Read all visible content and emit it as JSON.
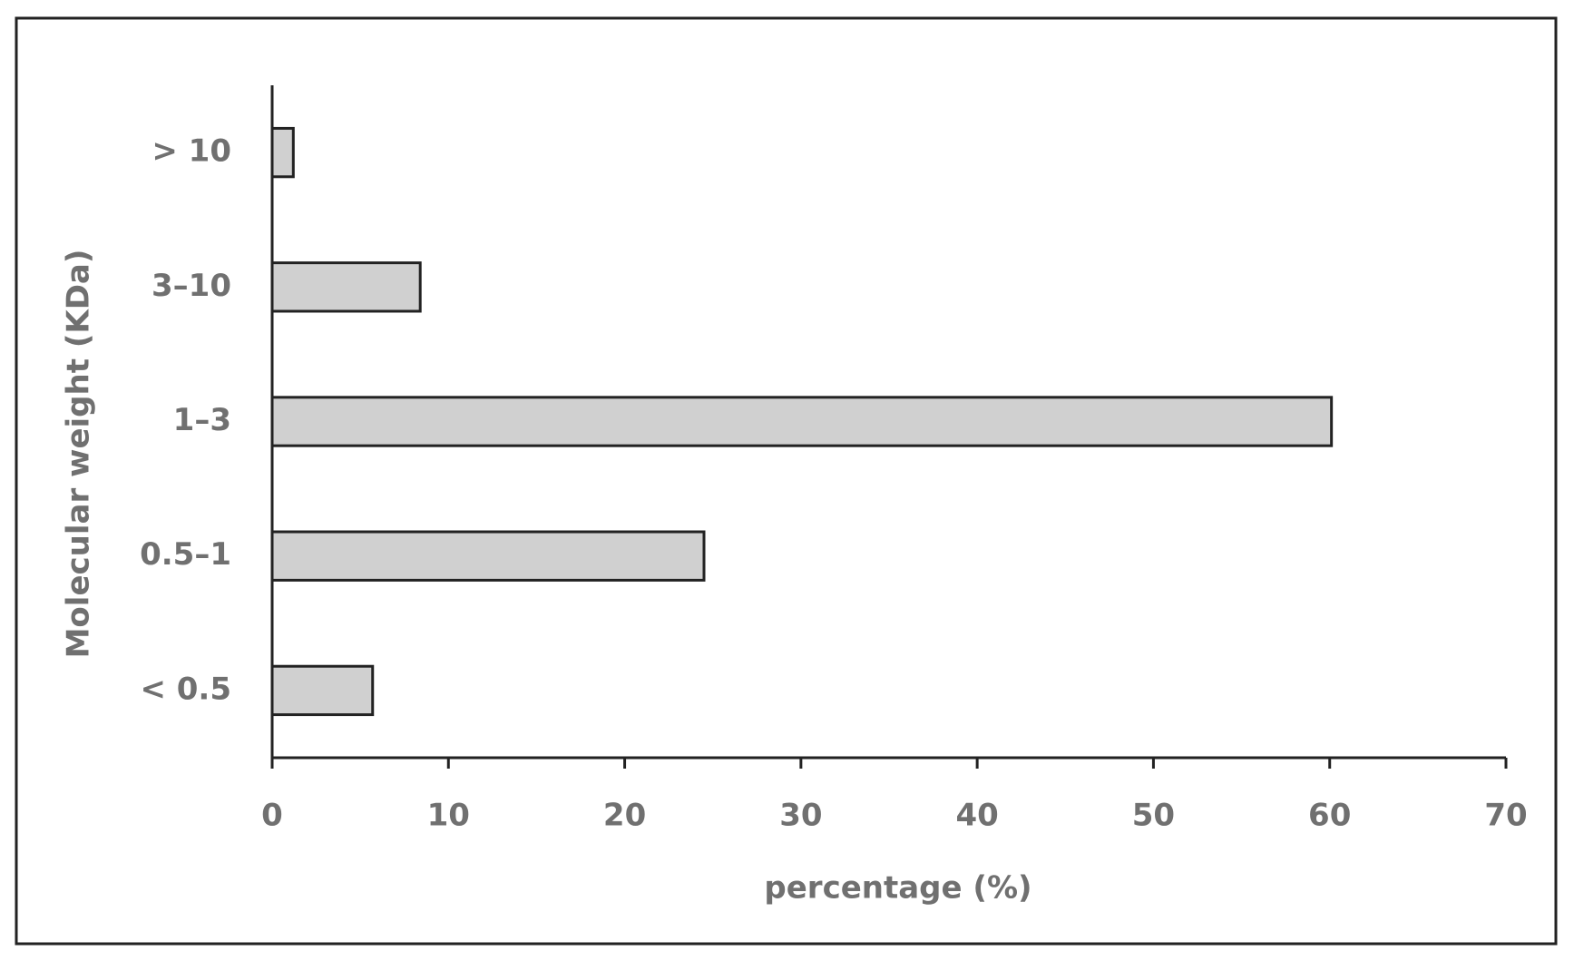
{
  "chart_data": {
    "type": "bar",
    "orientation": "horizontal",
    "x_label": "percentage (%)",
    "y_label": "Molecular weight (KDa)",
    "categories": [
      "< 0.5",
      "0.5–1",
      "1–3",
      "3–10",
      "> 10"
    ],
    "values": [
      5.7,
      24.5,
      60.1,
      8.4,
      1.2
    ],
    "color": "#d0d0d0",
    "xlim": [
      0,
      70
    ],
    "xticks": [
      0,
      10,
      20,
      30,
      40,
      50,
      60,
      70
    ],
    "grid": false
  }
}
